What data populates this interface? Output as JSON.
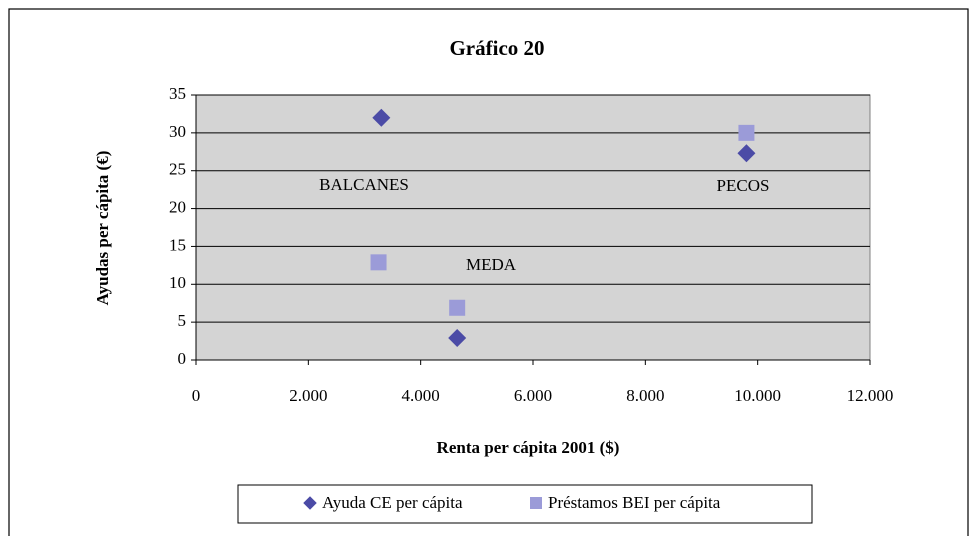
{
  "chart_data": {
    "type": "scatter",
    "title": "Gráfico 20",
    "xlabel": "Renta per cápita 2001 ($)",
    "ylabel": "Ayudas per cápita (€)",
    "series": [
      {
        "name": "Ayuda CE per cápita",
        "color": "#4b4ba6",
        "marker": "diamond",
        "x": [
          3300,
          4650,
          9800
        ],
        "values": [
          32,
          2.9,
          27.3
        ]
      },
      {
        "name": "Préstamos BEI per cápita",
        "color": "#9b9bd8",
        "marker": "square",
        "x": [
          3250,
          4650,
          9800
        ],
        "values": [
          12.9,
          6.9,
          30
        ]
      }
    ],
    "annotations": [
      "BALCANES",
      "MEDA",
      "PECOS"
    ],
    "xlim": [
      0,
      12000
    ],
    "xticks": [
      0,
      {
        "value": 2000,
        "label": "2.000"
      },
      {
        "value": 4000,
        "label": "4.000"
      },
      {
        "value": 6000,
        "label": "6.000"
      },
      {
        "value": 8000,
        "label": "8.000"
      },
      {
        "value": 10000,
        "label": "10.000"
      },
      {
        "value": 12000,
        "label": "12.000"
      }
    ],
    "ylim": [
      0,
      35
    ],
    "yticks": [
      0,
      5,
      10,
      15,
      20,
      25,
      30,
      35
    ],
    "grid": true,
    "legend": "bottom"
  }
}
